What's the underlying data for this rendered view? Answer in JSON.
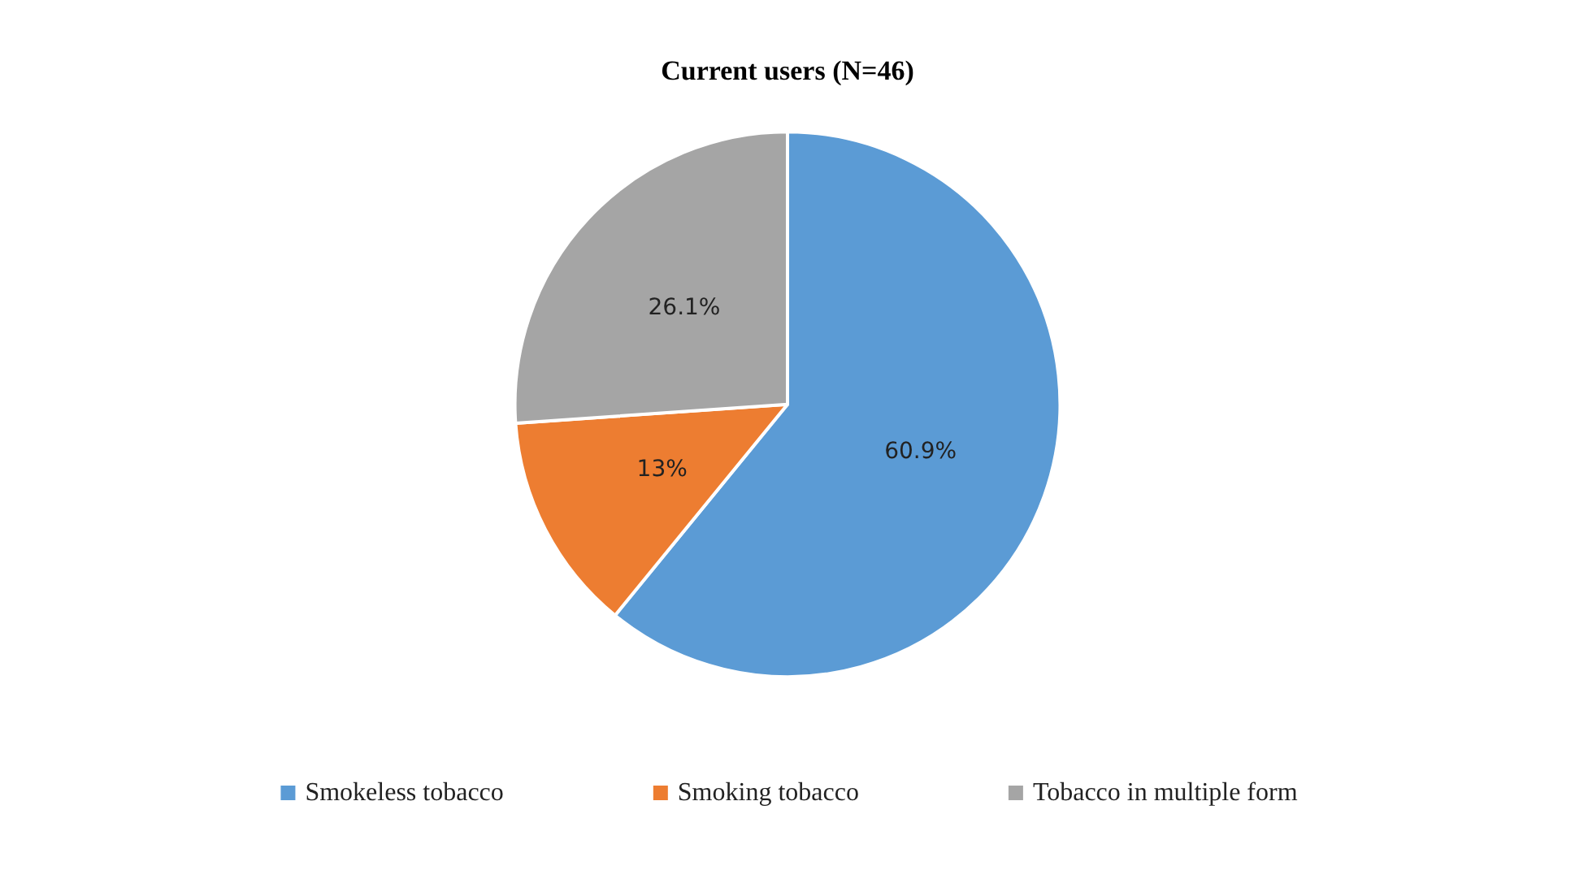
{
  "chart_data": {
    "type": "pie",
    "title": "Current users (N=46)",
    "categories": [
      "Smokeless tobacco",
      "Smoking tobacco",
      "Tobacco in multiple form"
    ],
    "values": [
      60.9,
      13,
      26.1
    ],
    "colors": [
      "#5b9bd5",
      "#ed7d31",
      "#a5a5a5"
    ],
    "value_labels": [
      "60.9%",
      "13%",
      "26.1%"
    ],
    "legend": "bottom"
  }
}
